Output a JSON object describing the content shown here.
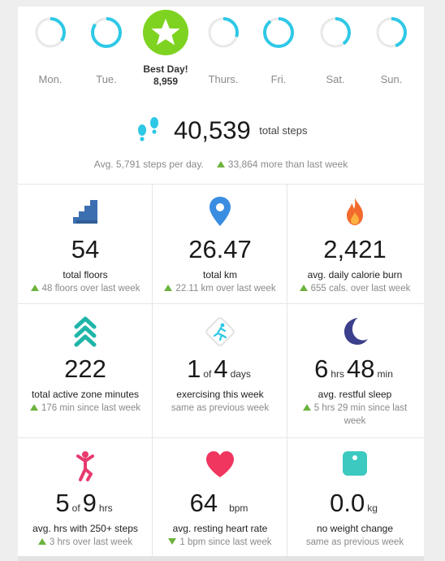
{
  "colors": {
    "ring": "#2ec8e6",
    "ring_track": "#e8e8e8",
    "best": "#7ed321",
    "trend": "#6db33f"
  },
  "week": [
    {
      "label": "Mon.",
      "progress": 0.35
    },
    {
      "label": "Tue.",
      "progress": 0.85
    },
    {
      "label": "Best Day!",
      "value": "8,959",
      "best": true
    },
    {
      "label": "Thurs.",
      "progress": 0.3
    },
    {
      "label": "Fri.",
      "progress": 0.9
    },
    {
      "label": "Sat.",
      "progress": 0.4
    },
    {
      "label": "Sun.",
      "progress": 0.45
    }
  ],
  "totals": {
    "steps": "40,539",
    "steps_unit": "total steps",
    "avg": "Avg. 5,791 steps per day.",
    "more": "33,864 more than last week"
  },
  "stats": [
    {
      "icon": "stairs-icon",
      "value": "54",
      "label": "total floors",
      "sub": "48 floors over last week",
      "trend": "up"
    },
    {
      "icon": "location-pin-icon",
      "value": "26.47",
      "label": "total km",
      "sub": "22.11 km over last week",
      "trend": "up"
    },
    {
      "icon": "flame-icon",
      "value": "2,421",
      "label": "avg. daily calorie burn",
      "sub": "655 cals. over last week",
      "trend": "up"
    },
    {
      "icon": "active-zone-icon",
      "value": "222",
      "label": "total active zone minutes",
      "sub": "176 min since last week",
      "trend": "up"
    },
    {
      "icon": "exercise-runner-icon",
      "v1": "1",
      "u1": "of",
      "v2": "4",
      "u2": "days",
      "label": "exercising this week",
      "sub": "same as previous week",
      "trend": "none"
    },
    {
      "icon": "moon-icon",
      "v1": "6",
      "u1": "hrs",
      "v2": "48",
      "u2": "min",
      "label": "avg. restful sleep",
      "sub": "5 hrs 29 min since last week",
      "trend": "up"
    },
    {
      "icon": "hourly-activity-icon",
      "v1": "5",
      "u1": "of",
      "v2": "9",
      "u2": "hrs",
      "label": "avg. hrs with 250+ steps",
      "sub": "3 hrs over last week",
      "trend": "up"
    },
    {
      "icon": "heart-icon",
      "value": "64",
      "unit": "bpm",
      "label": "avg. resting heart rate",
      "sub": "1 bpm since last week",
      "trend": "down"
    },
    {
      "icon": "scale-icon",
      "value": "0.0",
      "unit": "kg",
      "label": "no weight change",
      "sub": "same as previous week",
      "trend": "none"
    }
  ]
}
